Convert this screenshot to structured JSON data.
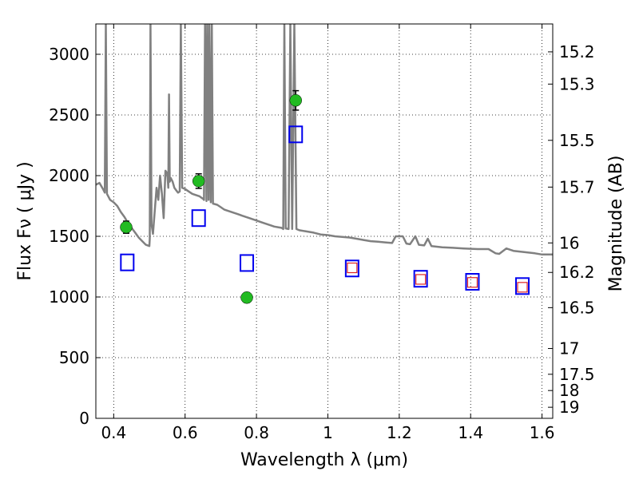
{
  "chart_data": {
    "type": "scatter",
    "xlabel": "Wavelength  λ (μm)",
    "ylabel": "Flux  Fν  ( μJy )",
    "y2label": "Magnitude (AB)",
    "xlim": [
      0.35,
      1.63
    ],
    "ylim": [
      0,
      3250
    ],
    "grid": true,
    "x_ticks": [
      0.4,
      0.6,
      0.8,
      1.0,
      1.2,
      1.4,
      1.6
    ],
    "x_tick_labels": [
      "0.4",
      "0.6",
      "0.8",
      "1",
      "1.2",
      "1.4",
      "1.6"
    ],
    "y_ticks": [
      0,
      500,
      1000,
      1500,
      2000,
      2500,
      3000
    ],
    "y_tick_labels": [
      "0",
      "500",
      "1000",
      "1500",
      "2000",
      "2500",
      "3000"
    ],
    "y2_ticks": [
      15.2,
      15.3,
      15.5,
      15.7,
      16,
      16.2,
      16.5,
      17,
      17.5,
      18,
      19
    ],
    "y2_tick_labels": [
      "15.2",
      "15.3",
      "15.5",
      "15.7",
      "16",
      "16.2",
      "16.5",
      "17",
      "17.5",
      "18",
      "19"
    ],
    "colors": {
      "spectrum": "#808080",
      "observed": "#22bb22",
      "model_blue": "#0000ee",
      "model_red": "#dd2222"
    },
    "series": [
      {
        "marker": "line",
        "points": [
          [
            0.35,
            1925
          ],
          [
            0.36,
            1940
          ],
          [
            0.37,
            1890
          ],
          [
            0.375,
            1860
          ],
          [
            0.378,
            3250
          ],
          [
            0.381,
            1850
          ],
          [
            0.39,
            1800
          ],
          [
            0.4,
            1780
          ],
          [
            0.41,
            1750
          ],
          [
            0.42,
            1700
          ],
          [
            0.43,
            1660
          ],
          [
            0.44,
            1610
          ],
          [
            0.45,
            1570
          ],
          [
            0.46,
            1530
          ],
          [
            0.47,
            1490
          ],
          [
            0.48,
            1460
          ],
          [
            0.49,
            1430
          ],
          [
            0.5,
            1420
          ],
          [
            0.501,
            1480
          ],
          [
            0.503,
            3250
          ],
          [
            0.506,
            1600
          ],
          [
            0.51,
            1520
          ],
          [
            0.52,
            1900
          ],
          [
            0.525,
            1800
          ],
          [
            0.53,
            2000
          ],
          [
            0.535,
            1850
          ],
          [
            0.54,
            1650
          ],
          [
            0.545,
            2040
          ],
          [
            0.55,
            2020
          ],
          [
            0.553,
            1900
          ],
          [
            0.555,
            2670
          ],
          [
            0.557,
            1950
          ],
          [
            0.56,
            1980
          ],
          [
            0.565,
            1950
          ],
          [
            0.57,
            1900
          ],
          [
            0.575,
            1880
          ],
          [
            0.58,
            1860
          ],
          [
            0.585,
            1870
          ],
          [
            0.588,
            3250
          ],
          [
            0.592,
            1900
          ],
          [
            0.6,
            1890
          ],
          [
            0.61,
            1870
          ],
          [
            0.62,
            1850
          ],
          [
            0.63,
            1840
          ],
          [
            0.64,
            1830
          ],
          [
            0.645,
            1820
          ],
          [
            0.65,
            1810
          ],
          [
            0.653,
            1800
          ],
          [
            0.656,
            3250
          ],
          [
            0.66,
            1790
          ],
          [
            0.662,
            3250
          ],
          [
            0.666,
            1800
          ],
          [
            0.668,
            3250
          ],
          [
            0.672,
            1780
          ],
          [
            0.675,
            3250
          ],
          [
            0.678,
            1770
          ],
          [
            0.69,
            1760
          ],
          [
            0.7,
            1740
          ],
          [
            0.71,
            1720
          ],
          [
            0.72,
            1710
          ],
          [
            0.73,
            1700
          ],
          [
            0.74,
            1690
          ],
          [
            0.75,
            1680
          ],
          [
            0.76,
            1670
          ],
          [
            0.77,
            1660
          ],
          [
            0.78,
            1650
          ],
          [
            0.79,
            1640
          ],
          [
            0.8,
            1630
          ],
          [
            0.81,
            1620
          ],
          [
            0.82,
            1610
          ],
          [
            0.83,
            1600
          ],
          [
            0.84,
            1590
          ],
          [
            0.85,
            1580
          ],
          [
            0.86,
            1575
          ],
          [
            0.87,
            1570
          ],
          [
            0.875,
            1560
          ],
          [
            0.878,
            3250
          ],
          [
            0.882,
            1565
          ],
          [
            0.89,
            1560
          ],
          [
            0.895,
            3250
          ],
          [
            0.9,
            1560
          ],
          [
            0.906,
            3250
          ],
          [
            0.912,
            1560
          ],
          [
            0.92,
            1550
          ],
          [
            0.94,
            1540
          ],
          [
            0.96,
            1530
          ],
          [
            0.98,
            1515
          ],
          [
            1.0,
            1510
          ],
          [
            1.02,
            1500
          ],
          [
            1.04,
            1495
          ],
          [
            1.06,
            1490
          ],
          [
            1.08,
            1480
          ],
          [
            1.1,
            1470
          ],
          [
            1.12,
            1460
          ],
          [
            1.14,
            1455
          ],
          [
            1.16,
            1450
          ],
          [
            1.18,
            1445
          ],
          [
            1.19,
            1500
          ],
          [
            1.21,
            1500
          ],
          [
            1.22,
            1440
          ],
          [
            1.23,
            1435
          ],
          [
            1.245,
            1500
          ],
          [
            1.255,
            1430
          ],
          [
            1.27,
            1425
          ],
          [
            1.28,
            1480
          ],
          [
            1.29,
            1420
          ],
          [
            1.32,
            1410
          ],
          [
            1.35,
            1405
          ],
          [
            1.38,
            1400
          ],
          [
            1.42,
            1395
          ],
          [
            1.45,
            1395
          ],
          [
            1.47,
            1360
          ],
          [
            1.48,
            1355
          ],
          [
            1.5,
            1400
          ],
          [
            1.52,
            1380
          ],
          [
            1.55,
            1370
          ],
          [
            1.58,
            1360
          ],
          [
            1.6,
            1350
          ],
          [
            1.63,
            1350
          ]
        ]
      },
      {
        "marker": "circle",
        "points": [
          {
            "x": 0.435,
            "y": 1575,
            "err": 50
          },
          {
            "x": 0.638,
            "y": 1955,
            "err": 60
          },
          {
            "x": 0.773,
            "y": 995,
            "err": 40
          },
          {
            "x": 0.91,
            "y": 2620,
            "err": 80
          }
        ]
      },
      {
        "marker": "square-blue",
        "points": [
          {
            "x": 0.438,
            "y": 1285
          },
          {
            "x": 0.638,
            "y": 1650
          },
          {
            "x": 0.773,
            "y": 1280
          },
          {
            "x": 0.91,
            "y": 2340
          },
          {
            "x": 1.068,
            "y": 1235
          },
          {
            "x": 1.26,
            "y": 1150
          },
          {
            "x": 1.405,
            "y": 1125
          },
          {
            "x": 1.545,
            "y": 1090
          }
        ]
      },
      {
        "marker": "square-red",
        "points": [
          {
            "x": 1.068,
            "y": 1240
          },
          {
            "x": 1.26,
            "y": 1145
          },
          {
            "x": 1.405,
            "y": 1120
          },
          {
            "x": 1.545,
            "y": 1080
          }
        ]
      }
    ]
  }
}
